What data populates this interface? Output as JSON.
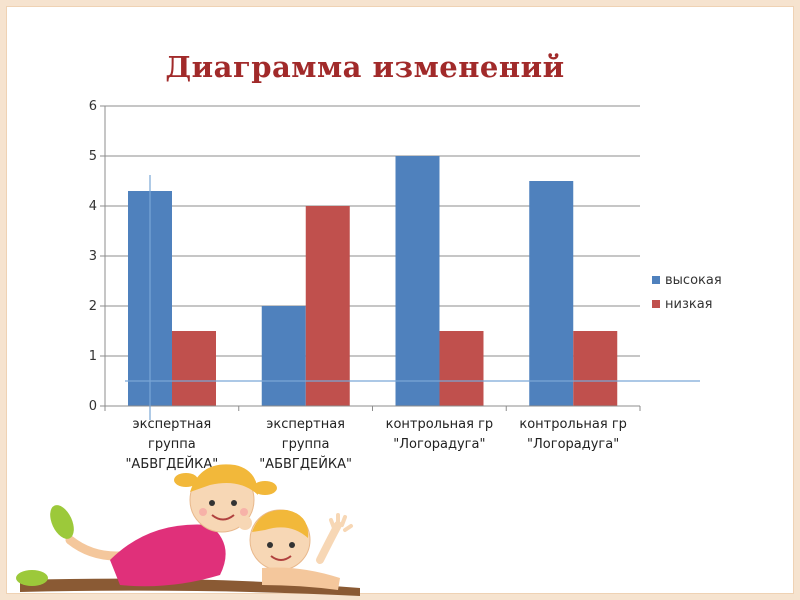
{
  "slide": {
    "title": "Диаграмма изменений"
  },
  "chart_data": {
    "type": "bar",
    "title": "Диаграмма изменений",
    "categories": [
      [
        "экспертная",
        "группа",
        "\"АБВГДЕЙКА\""
      ],
      [
        "экспертная",
        "группа",
        "\"АБВГДЕЙКА\""
      ],
      [
        "контрольная гр",
        "\"Логорадуга\""
      ],
      [
        "контрольная гр",
        "\"Логорадуга\""
      ]
    ],
    "series": [
      {
        "name": "высокая",
        "values": [
          4.3,
          2,
          5,
          4.5
        ],
        "color": "#4f81bd"
      },
      {
        "name": "низкая",
        "values": [
          1.5,
          4,
          1.5,
          1.5
        ],
        "color": "#c0504d"
      }
    ],
    "ylim": [
      0,
      6
    ],
    "yticks": [
      0,
      1,
      2,
      3,
      4,
      5,
      6
    ],
    "grid": true,
    "legend": "right",
    "xlabel": "",
    "ylabel": ""
  },
  "decor": {
    "illustration": "children-lying-illustration"
  }
}
